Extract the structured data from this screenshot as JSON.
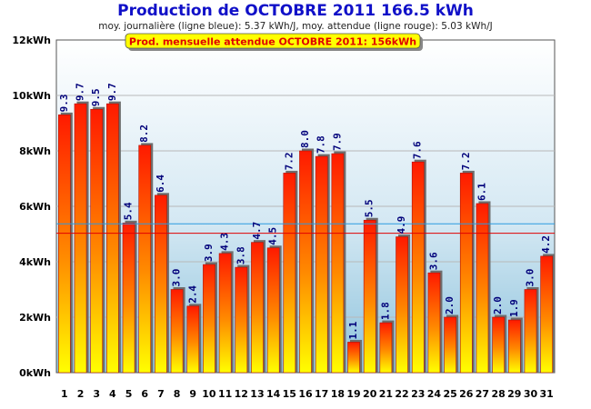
{
  "chart_data": {
    "type": "bar",
    "title": "Production de OCTOBRE 2011  166.5 kWh",
    "subtitle": "moy. journalière (ligne bleue): 5.37 kWh/J,   moy. attendue (ligne rouge): 5.03 kWh/J",
    "banner": "Prod. mensuelle attendue OCTOBRE 2011: 156kWh",
    "categories": [
      "1",
      "2",
      "3",
      "4",
      "5",
      "6",
      "7",
      "8",
      "9",
      "10",
      "11",
      "12",
      "13",
      "14",
      "15",
      "16",
      "17",
      "18",
      "19",
      "20",
      "21",
      "22",
      "23",
      "24",
      "25",
      "26",
      "27",
      "28",
      "29",
      "30",
      "31"
    ],
    "values": [
      9.3,
      9.7,
      9.5,
      9.7,
      5.4,
      8.2,
      6.4,
      3.0,
      2.4,
      3.9,
      4.3,
      3.8,
      4.7,
      4.5,
      7.2,
      8.0,
      7.8,
      7.9,
      1.1,
      5.5,
      1.8,
      4.9,
      7.6,
      3.6,
      2.0,
      7.2,
      6.1,
      2.0,
      1.9,
      3.0,
      4.2
    ],
    "value_labels": [
      "9.3",
      "9.7",
      "9.5",
      "9.7",
      "5.4",
      "8.2",
      "6.4",
      "3.0",
      "2.4",
      "3.9",
      "4.3",
      "3.8",
      "4.7",
      "4.5",
      "7.2",
      "8.0",
      "7.8",
      "7.9",
      "1.1",
      "5.5",
      "1.8",
      "4.9",
      "7.6",
      "3.6",
      "2.0",
      "7.2",
      "6.1",
      "2.0",
      "1.9",
      "3.0",
      "4.2"
    ],
    "ylim": [
      0,
      12
    ],
    "y_ticks": [
      0,
      2,
      4,
      6,
      8,
      10,
      12
    ],
    "y_tick_labels": [
      "0kWh",
      "2kWh",
      "4kWh",
      "6kWh",
      "8kWh",
      "10kWh",
      "12kWh"
    ],
    "average_daily": 5.37,
    "average_expected": 5.03,
    "grid": true,
    "colors": {
      "title": "#1010c8",
      "bar_top": "#ff1a00",
      "bar_bottom": "#ffff00",
      "bar_stroke": "#b01000",
      "label": "#00007a",
      "avg_line": "#2a9adf",
      "expected_line": "#e00000",
      "banner_bg": "#ffff00",
      "banner_text": "#e00000"
    }
  }
}
